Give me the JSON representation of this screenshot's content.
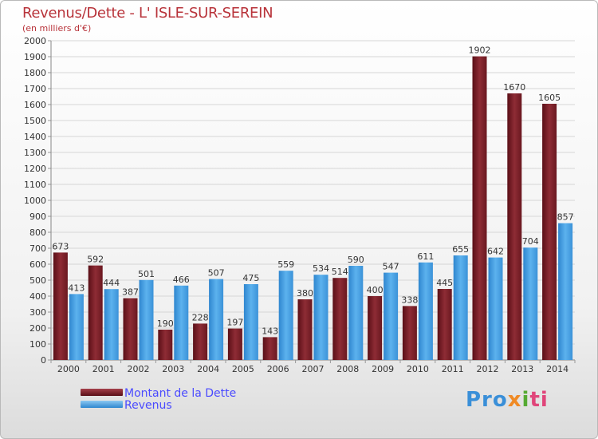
{
  "page_title": "Revenus/Dette - L' ISLE-SUR-SEREIN",
  "subtitle": "(en milliers d'€)",
  "logo_text": "Proxiti",
  "colors": {
    "dette": "#7a1e26",
    "revenus": "#4aa3e6",
    "title": "#b8333a",
    "legend_text": "#4a4aff"
  },
  "chart_data": {
    "type": "bar",
    "title": "Revenus/Dette - L' ISLE-SUR-SEREIN",
    "subtitle": "(en milliers d'€)",
    "xlabel": "",
    "ylabel": "",
    "categories": [
      "2000",
      "2001",
      "2002",
      "2003",
      "2004",
      "2005",
      "2006",
      "2007",
      "2008",
      "2009",
      "2010",
      "2011",
      "2012",
      "2013",
      "2014"
    ],
    "series": [
      {
        "name": "Montant de la Dette",
        "values": [
          673,
          592,
          387,
          190,
          228,
          197,
          143,
          380,
          514,
          400,
          338,
          445,
          1902,
          1670,
          1605
        ]
      },
      {
        "name": "Revenus",
        "values": [
          413,
          444,
          501,
          466,
          507,
          475,
          559,
          534,
          590,
          547,
          611,
          655,
          642,
          704,
          857
        ]
      }
    ],
    "ylim": [
      0,
      2000
    ],
    "yticks": [
      0,
      100,
      200,
      300,
      400,
      500,
      600,
      700,
      800,
      900,
      1000,
      1100,
      1200,
      1300,
      1400,
      1500,
      1600,
      1700,
      1800,
      1900,
      2000
    ],
    "grid": true,
    "legend_position": "bottom-left"
  }
}
